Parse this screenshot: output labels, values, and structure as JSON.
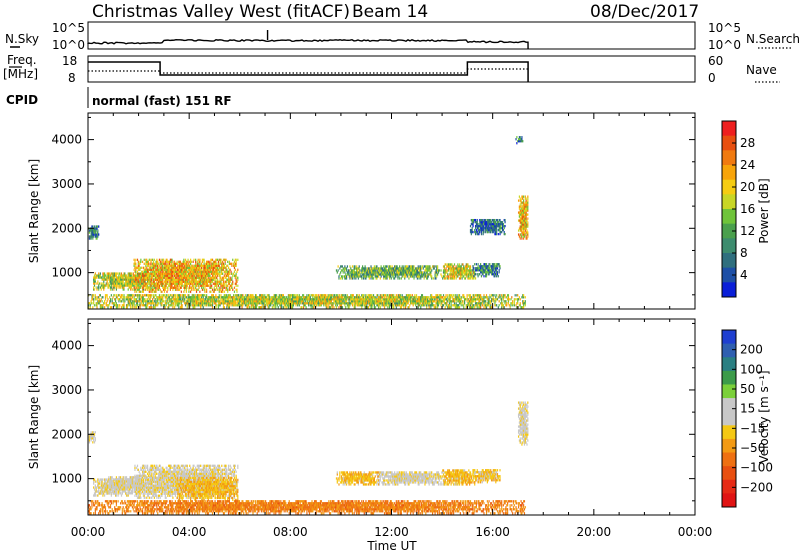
{
  "header": {
    "title": "Christmas Valley West (fitACF)",
    "beam": "Beam 14",
    "date": "08/Dec/2017"
  },
  "nsky_panel": {
    "left_label": "N.Sky",
    "right_label": "N.Search",
    "left_ticks": [
      "10^5",
      "10^0"
    ],
    "right_ticks": [
      "10^5",
      "10^0"
    ]
  },
  "freq_panel": {
    "left_label_line1": "Freq.",
    "left_label_line2": "[MHz]",
    "right_label": "Nave",
    "left_ticks": [
      "18",
      "8"
    ],
    "right_ticks": [
      "60",
      "0"
    ]
  },
  "cpid": {
    "label": "CPID",
    "text": "normal (fast) 151 RF"
  },
  "power_colorbar": {
    "label": "Power [dB]",
    "ticks": [
      "28",
      "24",
      "20",
      "16",
      "12",
      "8",
      "4"
    ],
    "colors": [
      "#ee1f1f",
      "#e84f10",
      "#f07a10",
      "#f7a40a",
      "#f5cc12",
      "#c8d626",
      "#6fc43a",
      "#4aa04d",
      "#3d8c6e",
      "#2f6f7e",
      "#1d4fa6",
      "#0a1fd8"
    ]
  },
  "velocity_colorbar": {
    "label": "Velocity [m s⁻¹]",
    "ticks": [
      "200",
      "100",
      "50",
      "15",
      "−15",
      "−50",
      "−100",
      "−200"
    ],
    "colors": [
      "#1f3fd0",
      "#2f5fb0",
      "#2a7f82",
      "#3c9b4a",
      "#7bd03a",
      "#c8c8c8",
      "#c8c8c8",
      "#f5c814",
      "#f39a14",
      "#ee7012",
      "#e84f10",
      "#e62a16",
      "#e01414"
    ]
  },
  "time_axis": {
    "label": "Time UT",
    "ticks": [
      "00:00",
      "04:00",
      "08:00",
      "12:00",
      "16:00",
      "20:00",
      "00:00"
    ]
  },
  "range_axis": {
    "label": "Slant Range [km]",
    "ticks": [
      "4000",
      "3000",
      "2000",
      "1000"
    ]
  },
  "chart_data": [
    {
      "type": "heatmap",
      "title": "Power",
      "xlabel": "Time UT",
      "ylabel": "Slant Range [km]",
      "xlim_hours": [
        0,
        24
      ],
      "ylim_km": [
        180,
        4600
      ],
      "colorbar_label": "Power [dB]",
      "colorbar_range": [
        0,
        30
      ],
      "echo_regions": [
        {
          "t_start": 0.0,
          "t_end": 0.4,
          "r_low": 1750,
          "r_high": 2050,
          "power": 8
        },
        {
          "t_start": 0.2,
          "t_end": 2.8,
          "r_low": 600,
          "r_high": 1000,
          "power": 16
        },
        {
          "t_start": 1.8,
          "t_end": 5.9,
          "r_low": 550,
          "r_high": 1300,
          "power": 20
        },
        {
          "t_start": 0.0,
          "t_end": 17.3,
          "r_low": 200,
          "r_high": 500,
          "power": 16
        },
        {
          "t_start": 9.8,
          "t_end": 14.1,
          "r_low": 850,
          "r_high": 1150,
          "power": 12
        },
        {
          "t_start": 14.0,
          "t_end": 15.3,
          "r_low": 850,
          "r_high": 1200,
          "power": 18
        },
        {
          "t_start": 15.2,
          "t_end": 16.3,
          "r_low": 900,
          "r_high": 1200,
          "power": 8
        },
        {
          "t_start": 15.1,
          "t_end": 16.5,
          "r_low": 1850,
          "r_high": 2200,
          "power": 6
        },
        {
          "t_start": 17.0,
          "t_end": 17.4,
          "r_low": 1750,
          "r_high": 2700,
          "power": 20
        },
        {
          "t_start": 16.9,
          "t_end": 17.2,
          "r_low": 3900,
          "r_high": 4050,
          "power": 8
        }
      ]
    },
    {
      "type": "heatmap",
      "title": "Velocity",
      "xlabel": "Time UT",
      "ylabel": "Slant Range [km]",
      "xlim_hours": [
        0,
        24
      ],
      "ylim_km": [
        180,
        4600
      ],
      "colorbar_label": "Velocity [m s⁻¹]",
      "colorbar_range": [
        -200,
        200
      ],
      "echo_regions": [
        {
          "t_start": 0.0,
          "t_end": 0.3,
          "r_low": 1800,
          "r_high": 2050,
          "velocity": 0
        },
        {
          "t_start": 0.2,
          "t_end": 1.6,
          "r_low": 600,
          "r_high": 1000,
          "velocity": -10
        },
        {
          "t_start": 0.8,
          "t_end": 2.5,
          "r_low": 650,
          "r_high": 1050,
          "velocity": 0
        },
        {
          "t_start": 1.8,
          "t_end": 5.9,
          "r_low": 550,
          "r_high": 1300,
          "velocity": -5
        },
        {
          "t_start": 3.5,
          "t_end": 5.9,
          "r_low": 500,
          "r_high": 1000,
          "velocity": -40
        },
        {
          "t_start": 0.0,
          "t_end": 17.3,
          "r_low": 200,
          "r_high": 500,
          "velocity": -80
        },
        {
          "t_start": 9.8,
          "t_end": 11.5,
          "r_low": 850,
          "r_high": 1150,
          "velocity": -40
        },
        {
          "t_start": 11.5,
          "t_end": 14.1,
          "r_low": 850,
          "r_high": 1150,
          "velocity": 0
        },
        {
          "t_start": 14.0,
          "t_end": 15.3,
          "r_low": 850,
          "r_high": 1200,
          "velocity": -40
        },
        {
          "t_start": 15.2,
          "t_end": 16.3,
          "r_low": 900,
          "r_high": 1200,
          "velocity": -30
        },
        {
          "t_start": 17.0,
          "t_end": 17.4,
          "r_low": 1750,
          "r_high": 2700,
          "velocity": 0
        }
      ]
    }
  ]
}
